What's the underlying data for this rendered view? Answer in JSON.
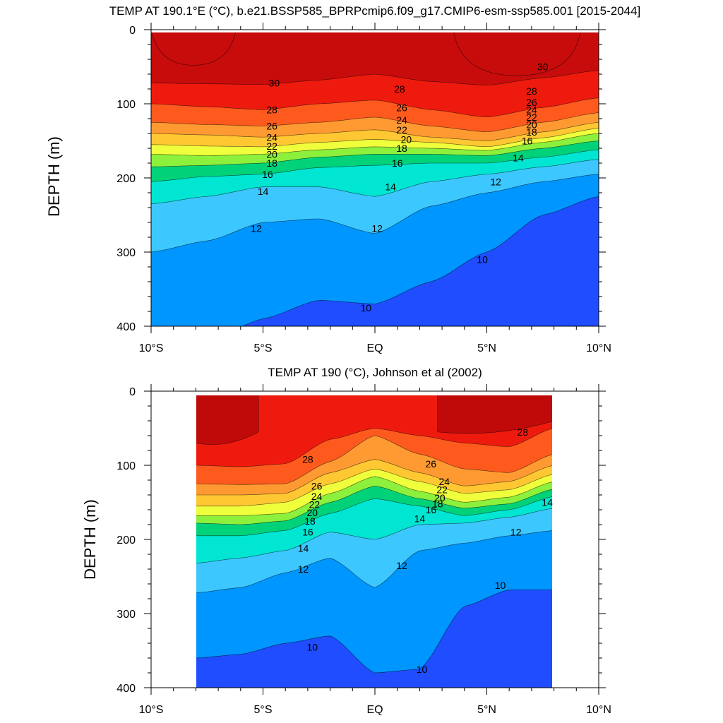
{
  "chart_data": [
    {
      "type": "heatmap",
      "title": "TEMP AT 190.1°E (°C), b.e21.BSSP585_BPRPcmip6.f09_g17.CMIP6-esm-ssp585.001 [2015-2044]",
      "xlabel": "",
      "ylabel": "DEPTH (m)",
      "xlim": [
        -10,
        10
      ],
      "ylim": [
        400,
        0
      ],
      "x_ticks": [
        -10,
        -5,
        0,
        5,
        10
      ],
      "x_tick_labels": [
        "10°S",
        "5°S",
        "EQ",
        "5°N",
        "10°N"
      ],
      "y_ticks": [
        0,
        100,
        200,
        300,
        400
      ],
      "y_tick_labels": [
        "0",
        "100",
        "200",
        "300",
        "400"
      ],
      "data_extent": [
        -10,
        10
      ],
      "levels": [
        10,
        12,
        14,
        16,
        18,
        20,
        22,
        24,
        26,
        28,
        30
      ],
      "x": [
        -10,
        -7.5,
        -5,
        -2.5,
        0,
        2.5,
        5,
        7.5,
        10
      ],
      "contours": [
        {
          "level": 30,
          "depths": [
            72,
            73,
            74,
            68,
            60,
            70,
            75,
            65,
            55
          ]
        },
        {
          "level": 28,
          "depths": [
            100,
            104,
            108,
            100,
            95,
            108,
            118,
            105,
            92
          ]
        },
        {
          "level": 26,
          "depths": [
            125,
            128,
            130,
            125,
            118,
            130,
            138,
            125,
            112
          ]
        },
        {
          "level": 24,
          "depths": [
            140,
            142,
            145,
            140,
            135,
            145,
            150,
            138,
            125
          ]
        },
        {
          "level": 22,
          "depths": [
            155,
            157,
            158,
            152,
            148,
            152,
            158,
            146,
            133
          ]
        },
        {
          "level": 20,
          "depths": [
            168,
            170,
            168,
            162,
            158,
            160,
            163,
            152,
            140
          ]
        },
        {
          "level": 18,
          "depths": [
            185,
            183,
            180,
            172,
            168,
            168,
            170,
            160,
            150
          ]
        },
        {
          "level": 16,
          "depths": [
            205,
            198,
            195,
            186,
            183,
            180,
            180,
            172,
            162
          ]
        },
        {
          "level": 14,
          "depths": [
            235,
            225,
            212,
            212,
            225,
            205,
            195,
            185,
            175
          ]
        },
        {
          "level": 12,
          "depths": [
            300,
            285,
            260,
            255,
            275,
            238,
            220,
            205,
            195
          ]
        },
        {
          "level": 10,
          "depths": [
            430,
            420,
            390,
            365,
            370,
            340,
            300,
            250,
            225
          ]
        }
      ],
      "contour_labels": [
        {
          "value": 30,
          "x": -4.5,
          "depth": 72
        },
        {
          "value": 30,
          "x": 7.5,
          "depth": 50
        },
        {
          "value": 28,
          "x": -4.6,
          "depth": 108
        },
        {
          "value": 28,
          "x": 1.1,
          "depth": 80
        },
        {
          "value": 28,
          "x": 7.0,
          "depth": 83
        },
        {
          "value": 26,
          "x": -4.6,
          "depth": 130
        },
        {
          "value": 26,
          "x": 1.2,
          "depth": 105
        },
        {
          "value": 26,
          "x": 7.0,
          "depth": 98
        },
        {
          "value": 24,
          "x": -4.6,
          "depth": 145
        },
        {
          "value": 24,
          "x": 1.2,
          "depth": 122
        },
        {
          "value": 24,
          "x": 7.0,
          "depth": 108
        },
        {
          "value": 22,
          "x": -4.6,
          "depth": 157
        },
        {
          "value": 22,
          "x": 1.2,
          "depth": 135
        },
        {
          "value": 22,
          "x": 7.0,
          "depth": 118
        },
        {
          "value": 20,
          "x": -4.6,
          "depth": 168
        },
        {
          "value": 20,
          "x": 1.4,
          "depth": 148
        },
        {
          "value": 20,
          "x": 7.0,
          "depth": 128
        },
        {
          "value": 18,
          "x": -4.6,
          "depth": 180
        },
        {
          "value": 18,
          "x": 1.2,
          "depth": 160
        },
        {
          "value": 18,
          "x": 7.0,
          "depth": 138
        },
        {
          "value": 16,
          "x": -4.8,
          "depth": 195
        },
        {
          "value": 16,
          "x": 1.0,
          "depth": 180
        },
        {
          "value": 16,
          "x": 6.8,
          "depth": 150
        },
        {
          "value": 14,
          "x": -5.0,
          "depth": 218
        },
        {
          "value": 14,
          "x": 0.7,
          "depth": 212
        },
        {
          "value": 14,
          "x": 6.4,
          "depth": 173
        },
        {
          "value": 12,
          "x": -5.3,
          "depth": 268
        },
        {
          "value": 12,
          "x": 0.1,
          "depth": 268
        },
        {
          "value": 12,
          "x": 5.4,
          "depth": 205
        },
        {
          "value": 10,
          "x": -0.4,
          "depth": 375
        },
        {
          "value": 10,
          "x": 4.8,
          "depth": 310
        }
      ]
    },
    {
      "type": "heatmap",
      "title": "TEMP AT 190 (°C), Johnson et al (2002)",
      "xlabel": "",
      "ylabel": "DEPTH (m)",
      "xlim": [
        -10,
        10
      ],
      "ylim": [
        400,
        0
      ],
      "x_ticks": [
        -10,
        -5,
        0,
        5,
        10
      ],
      "x_tick_labels": [
        "10°S",
        "5°S",
        "EQ",
        "5°N",
        "10°N"
      ],
      "y_ticks": [
        0,
        100,
        200,
        300,
        400
      ],
      "y_tick_labels": [
        "0",
        "100",
        "200",
        "300",
        "400"
      ],
      "data_extent": [
        -8,
        8
      ],
      "levels": [
        10,
        12,
        14,
        16,
        18,
        20,
        22,
        24,
        26,
        28
      ],
      "x": [
        -8,
        -6,
        -4,
        -2,
        0,
        2,
        4,
        6,
        8
      ],
      "contours": [
        {
          "level": 28,
          "depths": [
            100,
            102,
            98,
            65,
            50,
            60,
            70,
            75,
            50
          ]
        },
        {
          "level": 26,
          "depths": [
            125,
            126,
            125,
            95,
            60,
            85,
            105,
            110,
            85
          ]
        },
        {
          "level": 24,
          "depths": [
            140,
            140,
            138,
            110,
            92,
            110,
            128,
            122,
            100
          ]
        },
        {
          "level": 22,
          "depths": [
            155,
            155,
            150,
            125,
            105,
            122,
            138,
            133,
            112
          ]
        },
        {
          "level": 20,
          "depths": [
            168,
            168,
            165,
            138,
            115,
            135,
            150,
            143,
            122
          ]
        },
        {
          "level": 18,
          "depths": [
            178,
            180,
            175,
            150,
            128,
            145,
            158,
            152,
            132
          ]
        },
        {
          "level": 16,
          "depths": [
            195,
            195,
            188,
            165,
            145,
            155,
            168,
            160,
            142
          ]
        },
        {
          "level": 14,
          "depths": [
            232,
            225,
            215,
            190,
            200,
            180,
            178,
            170,
            158
          ]
        },
        {
          "level": 12,
          "depths": [
            272,
            265,
            245,
            225,
            265,
            215,
            205,
            195,
            188
          ]
        },
        {
          "level": 10,
          "depths": [
            360,
            355,
            340,
            330,
            380,
            375,
            290,
            268,
            268
          ]
        }
      ],
      "contour_labels": [
        {
          "value": 28,
          "x": -3.0,
          "depth": 92
        },
        {
          "value": 28,
          "x": 6.6,
          "depth": 55
        },
        {
          "value": 26,
          "x": -2.6,
          "depth": 128
        },
        {
          "value": 26,
          "x": 2.5,
          "depth": 98
        },
        {
          "value": 24,
          "x": -2.6,
          "depth": 142
        },
        {
          "value": 24,
          "x": 3.1,
          "depth": 122
        },
        {
          "value": 22,
          "x": -2.7,
          "depth": 153
        },
        {
          "value": 22,
          "x": 3.0,
          "depth": 133
        },
        {
          "value": 20,
          "x": -2.8,
          "depth": 164
        },
        {
          "value": 20,
          "x": 2.9,
          "depth": 144
        },
        {
          "value": 18,
          "x": -2.9,
          "depth": 175
        },
        {
          "value": 18,
          "x": 2.8,
          "depth": 152
        },
        {
          "value": 16,
          "x": -3.0,
          "depth": 190
        },
        {
          "value": 16,
          "x": 2.5,
          "depth": 160
        },
        {
          "value": 14,
          "x": -3.2,
          "depth": 212
        },
        {
          "value": 14,
          "x": 2.0,
          "depth": 172
        },
        {
          "value": 14,
          "x": 7.7,
          "depth": 150
        },
        {
          "value": 12,
          "x": -3.2,
          "depth": 240
        },
        {
          "value": 12,
          "x": 1.2,
          "depth": 235
        },
        {
          "value": 12,
          "x": 6.3,
          "depth": 190
        },
        {
          "value": 10,
          "x": -2.8,
          "depth": 345
        },
        {
          "value": 10,
          "x": 2.1,
          "depth": 375
        },
        {
          "value": 10,
          "x": 5.6,
          "depth": 262
        }
      ]
    }
  ],
  "colors": {
    "below_10": "#1f4dff",
    "10_12": "#0096ff",
    "12_14": "#3cc8ff",
    "14_16": "#00e6d2",
    "16_18": "#00d27a",
    "18_20": "#8cf03c",
    "20_22": "#f0ff3c",
    "22_24": "#ffc832",
    "24_26": "#ff9a32",
    "26_28": "#ff5a1e",
    "28_30": "#ef1a0e",
    "above_30": "#c80c0c",
    "warmest": "#c00a0a"
  }
}
